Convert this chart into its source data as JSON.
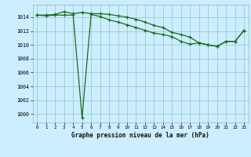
{
  "title": "Graphe pression niveau de la mer (hPa)",
  "background_color": "#cceeff",
  "plot_bg_color": "#cceeff",
  "grid_color": "#99cccc",
  "line_color": "#1a6b1a",
  "marker_color": "#1a6b1a",
  "xlim": [
    -0.5,
    23.5
  ],
  "ylim": [
    998.8,
    1015.8
  ],
  "yticks": [
    1000,
    1002,
    1004,
    1006,
    1008,
    1010,
    1012,
    1014
  ],
  "xticks": [
    0,
    1,
    2,
    3,
    4,
    5,
    6,
    7,
    8,
    9,
    10,
    11,
    12,
    13,
    14,
    15,
    16,
    17,
    18,
    19,
    20,
    21,
    22,
    23
  ],
  "series1": [
    1014.3,
    1014.3,
    1014.4,
    1014.8,
    1014.5,
    1014.7,
    1014.5,
    1014.5,
    1014.4,
    1014.2,
    1014.0,
    1013.7,
    1013.3,
    1012.8,
    1012.5,
    1011.8,
    1011.5,
    1011.1,
    1010.3,
    1010.0,
    1009.8,
    1010.5,
    1010.5,
    1012.1
  ],
  "series2": [
    1014.3,
    1014.2,
    1014.3,
    1014.3,
    1014.3,
    999.5,
    1014.4,
    1014.1,
    1013.6,
    1013.3,
    1012.9,
    1012.5,
    1012.1,
    1011.7,
    1011.5,
    1011.2,
    1010.5,
    1010.1,
    1010.3,
    1010.0,
    1009.8,
    1010.5,
    1010.5,
    1012.1
  ]
}
